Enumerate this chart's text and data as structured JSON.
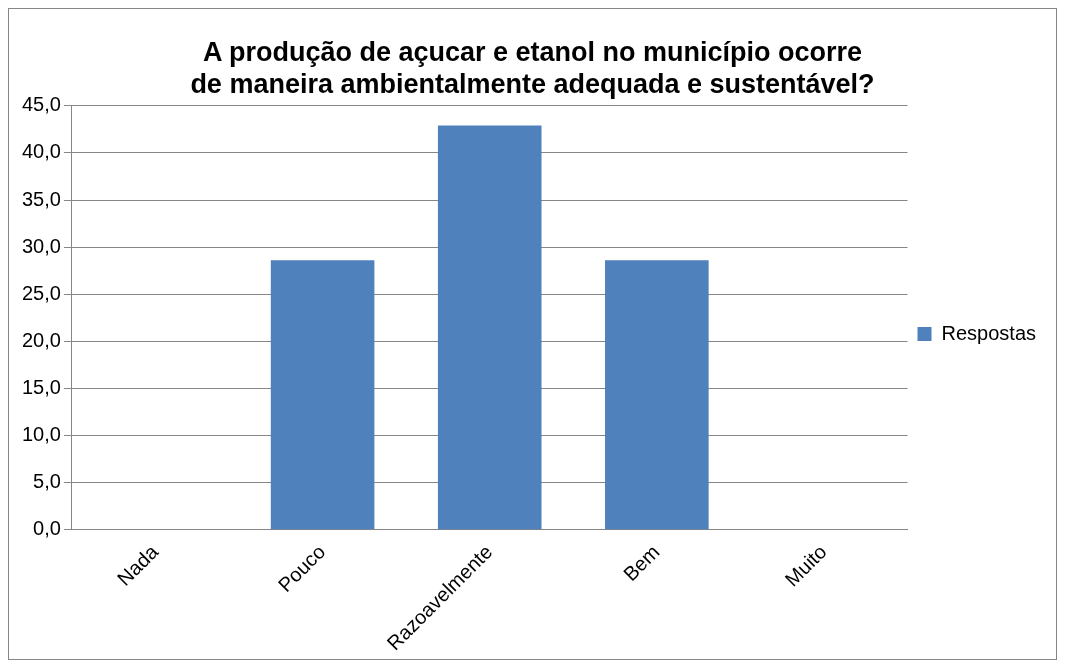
{
  "chart_data": {
    "type": "bar",
    "title": "A produção de açucar e etanol no município ocorre de maneira ambientalmente adequada e sustentável?",
    "categories": [
      "Nada",
      "Pouco",
      "Razoavelmente",
      "Bem",
      "Muito"
    ],
    "series": [
      {
        "name": "Respostas",
        "color": "#4f81bd",
        "values": [
          0,
          28.6,
          42.9,
          28.6,
          0
        ]
      }
    ],
    "ylim": [
      0,
      45
    ],
    "yticks": [
      {
        "value": 0,
        "label": "0,0"
      },
      {
        "value": 5,
        "label": "5,0"
      },
      {
        "value": 10,
        "label": "10,0"
      },
      {
        "value": 15,
        "label": "15,0"
      },
      {
        "value": 20,
        "label": "20,0"
      },
      {
        "value": 25,
        "label": "25,0"
      },
      {
        "value": 30,
        "label": "30,0"
      },
      {
        "value": 35,
        "label": "35,0"
      },
      {
        "value": 40,
        "label": "40,0"
      },
      {
        "value": 45,
        "label": "45,0"
      }
    ],
    "grid": "y",
    "legend": "right"
  }
}
